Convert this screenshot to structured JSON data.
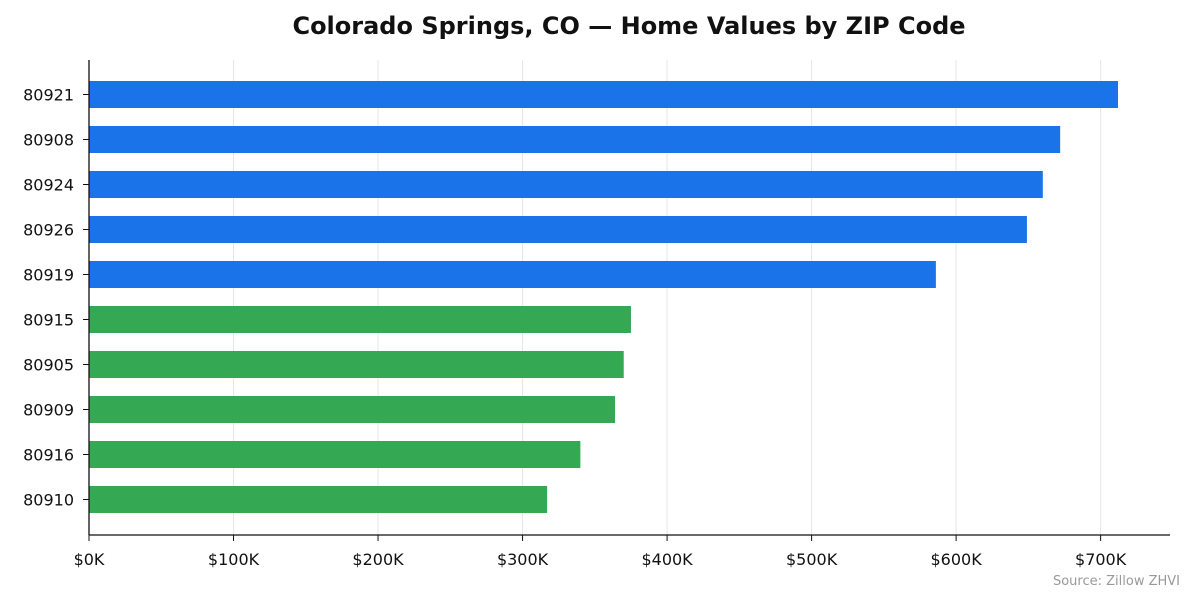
{
  "chart_data": {
    "type": "bar",
    "orientation": "horizontal",
    "title": "Colorado Springs, CO — Home Values by ZIP Code",
    "categories": [
      "80921",
      "80908",
      "80924",
      "80926",
      "80919",
      "80915",
      "80905",
      "80909",
      "80916",
      "80910"
    ],
    "values": [
      712000,
      672000,
      660000,
      649000,
      586000,
      375000,
      370000,
      364000,
      340000,
      317000
    ],
    "bar_colors": [
      "#1a73e8",
      "#1a73e8",
      "#1a73e8",
      "#1a73e8",
      "#1a73e8",
      "#34a853",
      "#34a853",
      "#34a853",
      "#34a853",
      "#34a853"
    ],
    "xlim": [
      0,
      748000
    ],
    "xticks": [
      0,
      100000,
      200000,
      300000,
      400000,
      500000,
      600000,
      700000
    ],
    "xtick_labels": [
      "$0K",
      "$100K",
      "$200K",
      "$300K",
      "$400K",
      "$500K",
      "$600K",
      "$700K"
    ],
    "grid": "vertical",
    "source": "Source: Zillow ZHVI"
  }
}
